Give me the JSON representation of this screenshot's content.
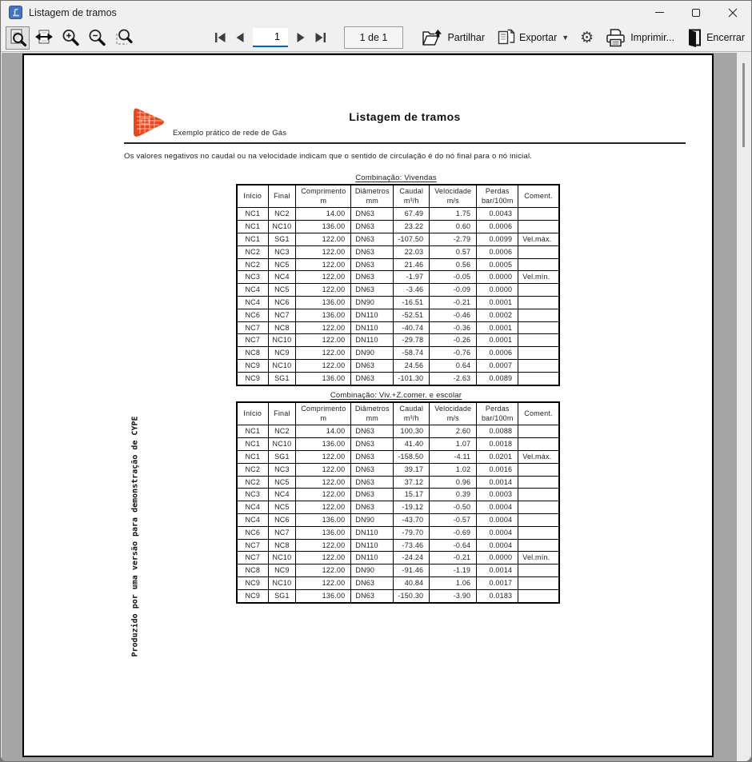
{
  "window": {
    "title": "Listagem de tramos"
  },
  "toolbar": {
    "nav": {
      "page_input": "1",
      "page_indicator": "1 de 1"
    },
    "buttons": {
      "share": "Partilhar",
      "export": "Exportar",
      "print": "Imprimir...",
      "close": "Encerrar"
    }
  },
  "document": {
    "header": {
      "project": "Exemplo prático de rede de Gás",
      "title": "Listagem de tramos"
    },
    "note": "Os valores negativos no caudal ou na velocidade indicam que o sentido de circulação é do nó final para o nó inicial.",
    "columns": [
      {
        "label": "Início",
        "unit": ""
      },
      {
        "label": "Final",
        "unit": ""
      },
      {
        "label": "Comprimento",
        "unit": "m"
      },
      {
        "label": "Diâmetros",
        "unit": "mm"
      },
      {
        "label": "Caudal",
        "unit": "m³/h"
      },
      {
        "label": "Velocidade",
        "unit": "m/s"
      },
      {
        "label": "Perdas",
        "unit": "bar/100m"
      },
      {
        "label": "Coment.",
        "unit": ""
      }
    ],
    "tables": [
      {
        "title": "Combinação: Vivendas",
        "rows": [
          [
            "NC1",
            "NC2",
            "14.00",
            "DN63",
            "67.49",
            "1.75",
            "0.0043",
            ""
          ],
          [
            "NC1",
            "NC10",
            "136.00",
            "DN63",
            "23.22",
            "0.60",
            "0.0006",
            ""
          ],
          [
            "NC1",
            "SG1",
            "122.00",
            "DN63",
            "-107.50",
            "-2.79",
            "0.0099",
            "Vel.máx."
          ],
          [
            "NC2",
            "NC3",
            "122.00",
            "DN63",
            "22.03",
            "0.57",
            "0.0006",
            ""
          ],
          [
            "NC2",
            "NC5",
            "122.00",
            "DN63",
            "21.46",
            "0.56",
            "0.0005",
            ""
          ],
          [
            "NC3",
            "NC4",
            "122.00",
            "DN63",
            "-1.97",
            "-0.05",
            "0.0000",
            "Vel.mín."
          ],
          [
            "NC4",
            "NC5",
            "122.00",
            "DN63",
            "-3.46",
            "-0.09",
            "0.0000",
            ""
          ],
          [
            "NC4",
            "NC6",
            "136.00",
            "DN90",
            "-16.51",
            "-0.21",
            "0.0001",
            ""
          ],
          [
            "NC6",
            "NC7",
            "136.00",
            "DN110",
            "-52.51",
            "-0.46",
            "0.0002",
            ""
          ],
          [
            "NC7",
            "NC8",
            "122.00",
            "DN110",
            "-40.74",
            "-0.36",
            "0.0001",
            ""
          ],
          [
            "NC7",
            "NC10",
            "122.00",
            "DN110",
            "-29.78",
            "-0.26",
            "0.0001",
            ""
          ],
          [
            "NC8",
            "NC9",
            "122.00",
            "DN90",
            "-58.74",
            "-0.76",
            "0.0006",
            ""
          ],
          [
            "NC9",
            "NC10",
            "122.00",
            "DN63",
            "24.56",
            "0.64",
            "0.0007",
            ""
          ],
          [
            "NC9",
            "SG1",
            "136.00",
            "DN63",
            "-101.30",
            "-2.63",
            "0.0089",
            ""
          ]
        ]
      },
      {
        "title": "Combinação: Viv.+Z.comer. e escolar",
        "rows": [
          [
            "NC1",
            "NC2",
            "14.00",
            "DN63",
            "100.30",
            "2.60",
            "0.0088",
            ""
          ],
          [
            "NC1",
            "NC10",
            "136.00",
            "DN63",
            "41.40",
            "1.07",
            "0.0018",
            ""
          ],
          [
            "NC1",
            "SG1",
            "122.00",
            "DN63",
            "-158.50",
            "-4.11",
            "0.0201",
            "Vel.máx."
          ],
          [
            "NC2",
            "NC3",
            "122.00",
            "DN63",
            "39.17",
            "1.02",
            "0.0016",
            ""
          ],
          [
            "NC2",
            "NC5",
            "122.00",
            "DN63",
            "37.12",
            "0.96",
            "0.0014",
            ""
          ],
          [
            "NC3",
            "NC4",
            "122.00",
            "DN63",
            "15.17",
            "0.39",
            "0.0003",
            ""
          ],
          [
            "NC4",
            "NC5",
            "122.00",
            "DN63",
            "-19.12",
            "-0.50",
            "0.0004",
            ""
          ],
          [
            "NC4",
            "NC6",
            "136.00",
            "DN90",
            "-43.70",
            "-0.57",
            "0.0004",
            ""
          ],
          [
            "NC6",
            "NC7",
            "136.00",
            "DN110",
            "-79.70",
            "-0.69",
            "0.0004",
            ""
          ],
          [
            "NC7",
            "NC8",
            "122.00",
            "DN110",
            "-73.46",
            "-0.64",
            "0.0004",
            ""
          ],
          [
            "NC7",
            "NC10",
            "122.00",
            "DN110",
            "-24.24",
            "-0.21",
            "0.0000",
            "Vel.mín."
          ],
          [
            "NC8",
            "NC9",
            "122.00",
            "DN90",
            "-91.46",
            "-1.19",
            "0.0014",
            ""
          ],
          [
            "NC9",
            "NC10",
            "122.00",
            "DN63",
            "40.84",
            "1.06",
            "0.0017",
            ""
          ],
          [
            "NC9",
            "SG1",
            "136.00",
            "DN63",
            "-150.30",
            "-3.90",
            "0.0183",
            ""
          ]
        ]
      }
    ],
    "watermark": "Produzido por uma versão para demonstração de CYPE"
  },
  "icons": {
    "app": "cype-report-icon",
    "preview_zoom": "page-with-magnifier",
    "fit_width": "page-fit-width-arrows",
    "zoom_in": "magnifier-plus",
    "zoom_out": "magnifier-minus",
    "zoom_region": "magnifier-region",
    "nav_first": "first-page",
    "nav_prev": "previous-page",
    "nav_next": "next-page",
    "nav_last": "last-page",
    "share": "folder-with-up-arrow",
    "export": "copy-pages",
    "settings": "⚙",
    "print": "printer",
    "close": "open-door"
  },
  "colors": {
    "accent_blue": "#0067c0",
    "logo_orange": "#e8481c",
    "preview_bg": "#a5a5a5",
    "chrome_bg": "#f0f0f0"
  }
}
